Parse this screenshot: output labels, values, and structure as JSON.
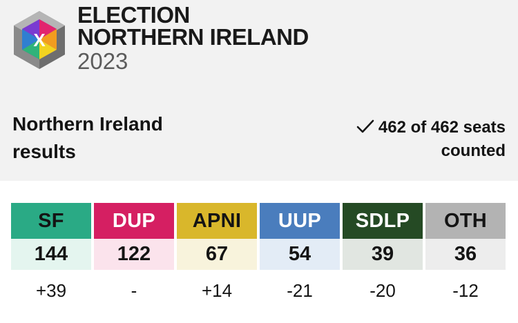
{
  "brand": {
    "line1": "ELECTION",
    "line2": "NORTHERN IRELAND",
    "year": "2023",
    "logo_glyph": "X"
  },
  "region": {
    "title": "Northern Ireland results"
  },
  "status": {
    "text": "462 of 462 seats counted",
    "icon": "checkmark-icon"
  },
  "parties": [
    {
      "abbr": "SF",
      "seats": "144",
      "change": "+39",
      "color": "#2aaa85",
      "light": "#e4f5ef",
      "text_color": "#141414"
    },
    {
      "abbr": "DUP",
      "seats": "122",
      "change": "-",
      "color": "#d51f62",
      "light": "#fbe3ec",
      "text_color": "#ffffff"
    },
    {
      "abbr": "APNI",
      "seats": "67",
      "change": "+14",
      "color": "#d9b72b",
      "light": "#f8f3dc",
      "text_color": "#141414"
    },
    {
      "abbr": "UUP",
      "seats": "54",
      "change": "-21",
      "color": "#4a7dbd",
      "light": "#e3ecf6",
      "text_color": "#ffffff"
    },
    {
      "abbr": "SDLP",
      "seats": "39",
      "change": "-20",
      "color": "#254a24",
      "light": "#e1e6e1",
      "text_color": "#ffffff"
    },
    {
      "abbr": "OTH",
      "seats": "36",
      "change": "-12",
      "color": "#b3b3b3",
      "light": "#ededed",
      "text_color": "#141414"
    }
  ]
}
